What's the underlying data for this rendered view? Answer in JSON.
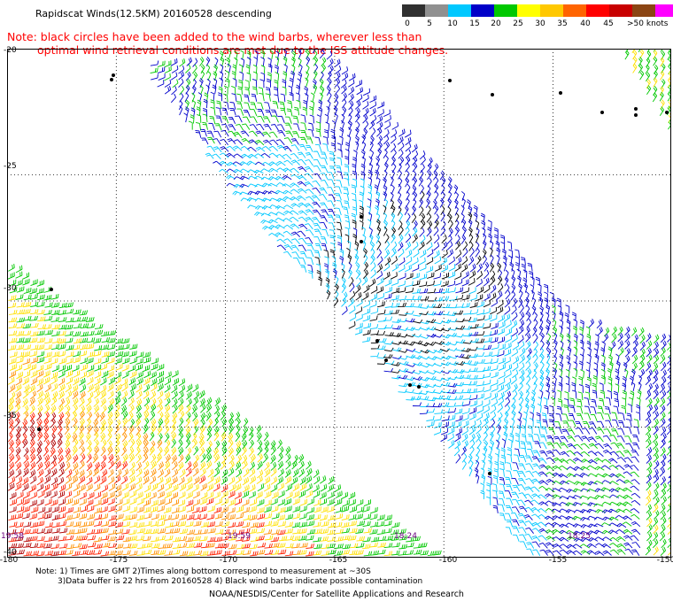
{
  "title": "Rapidscat Winds(12.5KM) 20160528 descending",
  "note": {
    "line1": "Note: black circles have been added to the wind barbs, wherever less than",
    "line2": "optimal wind retrieval conditions are met due to the ISS attitude changes."
  },
  "colorbar": {
    "colors": [
      "#303030",
      "#909090",
      "#00c8ff",
      "#0000c8",
      "#00c800",
      "#ffff00",
      "#ffc800",
      "#ff6400",
      "#ff0000",
      "#c80000",
      "#8b4513",
      "#ff00ff",
      "#8c00ff"
    ],
    "labels": [
      "0",
      "5",
      "10",
      "15",
      "20",
      "25",
      "30",
      "35",
      "40",
      "45",
      ">50 knots"
    ]
  },
  "map": {
    "lat_labels": [
      "-20",
      "-25",
      "-30",
      "-35",
      "-40"
    ],
    "lon_labels": [
      "-180",
      "-175",
      "-170",
      "-165",
      "-160",
      "-155",
      "-150"
    ],
    "time_labels": [
      "19:58",
      "19:59",
      "18:24",
      "18:25"
    ],
    "swath_colors": {
      "blue": "#0000cc",
      "cyan": "#00c8ff",
      "green": "#00c800",
      "yellow": "#ffe000",
      "orange": "#ff9000",
      "red": "#ff2000",
      "darkred": "#b00000",
      "black": "#000000"
    }
  },
  "footer": {
    "line1": "Note: 1) Times are GMT 2)Times along bottom correspond to measurement at ~30S",
    "line2": "3)Data buffer is 22 hrs from 20160528 4) Black wind barbs indicate possible contamination",
    "credit": "NOAA/NESDIS/Center for Satellite Applications and Research"
  }
}
